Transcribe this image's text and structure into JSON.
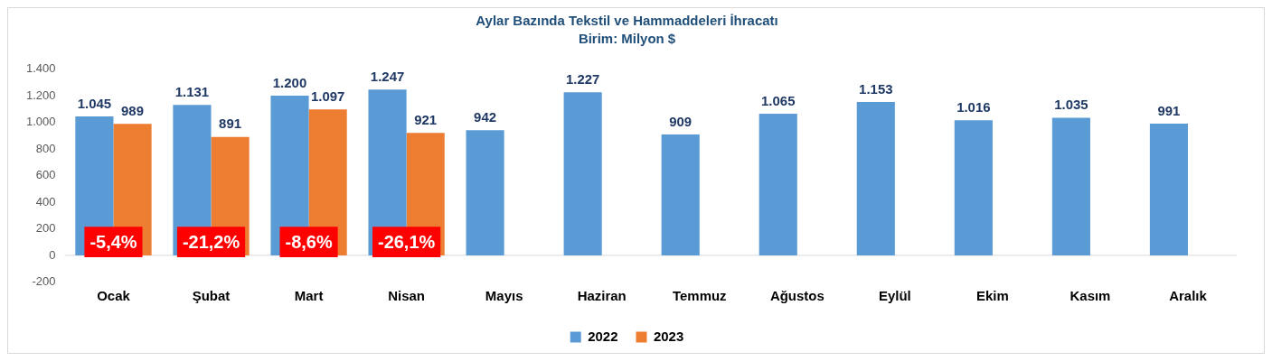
{
  "chart_data": {
    "type": "bar",
    "title": "Aylar Bazında Tekstil ve Hammaddeleri İhracatı",
    "subtitle": "Birim: Milyon $",
    "categories": [
      "Ocak",
      "Şubat",
      "Mart",
      "Nisan",
      "Mayıs",
      "Haziran",
      "Temmuz",
      "Ağustos",
      "Eylül",
      "Ekim",
      "Kasım",
      "Aralık"
    ],
    "series": [
      {
        "name": "2022",
        "color": "#5b9bd5",
        "values": [
          1045,
          1131,
          1200,
          1247,
          942,
          1227,
          909,
          1065,
          1153,
          1016,
          1035,
          991
        ],
        "value_labels": [
          "1.045",
          "1.131",
          "1.200",
          "1.247",
          "942",
          "1.227",
          "909",
          "1.065",
          "1.153",
          "1.016",
          "1.035",
          "991"
        ]
      },
      {
        "name": "2023",
        "color": "#ed7d31",
        "values": [
          989,
          891,
          1097,
          921,
          null,
          null,
          null,
          null,
          null,
          null,
          null,
          null
        ],
        "value_labels": [
          "989",
          "891",
          "1.097",
          "921",
          null,
          null,
          null,
          null,
          null,
          null,
          null,
          null
        ]
      }
    ],
    "ylim": [
      -200,
      1400
    ],
    "yticks": [
      -200,
      0,
      200,
      400,
      600,
      800,
      {
        "value": 1000,
        "label": "1.000"
      },
      {
        "value": 1200,
        "label": "1.200"
      },
      {
        "value": 1400,
        "label": "1.400"
      }
    ],
    "annotations": [
      {
        "text": "-5,4%",
        "x": "Ocak",
        "y": 100
      },
      {
        "text": "-21,2%",
        "x": "Şubat",
        "y": 100
      },
      {
        "text": "-8,6%",
        "x": "Mart",
        "y": 100
      },
      {
        "text": "-26,1%",
        "x": "Nisan",
        "y": 100
      }
    ],
    "grid": false,
    "legend": "bottom"
  }
}
